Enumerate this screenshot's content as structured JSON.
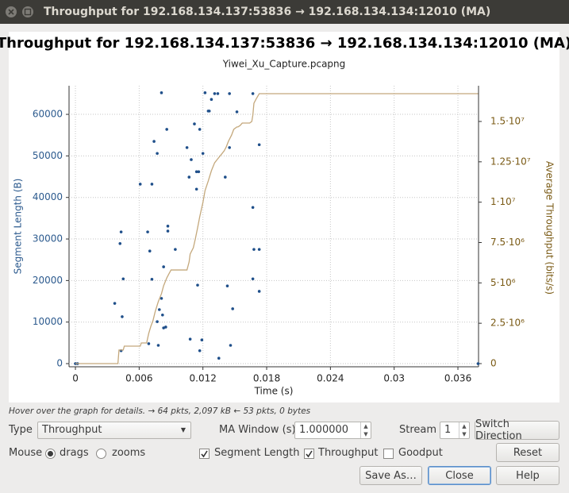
{
  "window_title": "Throughput for 192.168.134.137:53836 → 192.168.134.134:12010 (MA)",
  "chart_data": {
    "type": "scatter",
    "title": "Throughput for 192.168.134.137:53836 → 192.168.134.134:12010 (MA)",
    "subtitle": "Yiwei_Xu_Capture.pcapng",
    "x_label": "Time (s)",
    "y_label": "Segment Length (B)",
    "y2_label": "Average Throughput (bits/s)",
    "xlim": [
      -0.0006,
      0.03794
    ],
    "ylim": [
      -760,
      66890
    ],
    "y2lim": [
      -197000,
      17213000
    ],
    "xticks": [
      0,
      0.006,
      0.012,
      0.018,
      0.024,
      0.03,
      0.036
    ],
    "yticks": [
      0,
      10000,
      20000,
      30000,
      40000,
      50000,
      60000
    ],
    "y2ticks": [
      0,
      {
        "value": 2500000,
        "label": "2.5·10⁶"
      },
      {
        "value": 5000000,
        "label": "5·10⁶"
      },
      {
        "value": 7500000,
        "label": "7.5·10⁶"
      },
      {
        "value": 10000000,
        "label": "1·10⁷"
      },
      {
        "value": 12500000,
        "label": "1.25·10⁷"
      },
      {
        "value": 15000000,
        "label": "1.5·10⁷"
      }
    ],
    "grid": true,
    "series": [
      {
        "type": "scatter",
        "color": "#1f4f8a",
        "x": [
          0,
          0.0002,
          0.0037,
          0.0042,
          0.0043,
          0.0044,
          0.0045,
          0.0043,
          0.0061,
          0.0068,
          0.007,
          0.0069,
          0.0072,
          0.0072,
          0.0074,
          0.0077,
          0.0077,
          0.0078,
          0.0079,
          0.0081,
          0.0082,
          0.0083,
          0.0083,
          0.0085,
          0.0081,
          0.0086,
          0.0087,
          0.0087,
          0.0094,
          0.0105,
          0.0107,
          0.0109,
          0.0112,
          0.0114,
          0.0114,
          0.0116,
          0.0115,
          0.0117,
          0.0119,
          0.0108,
          0.0117,
          0.012,
          0.0122,
          0.0125,
          0.0126,
          0.0128,
          0.0131,
          0.0134,
          0.0135,
          0.0141,
          0.0143,
          0.0145,
          0.0145,
          0.0146,
          0.0148,
          0.0152,
          0.0167,
          0.0167,
          0.0168,
          0.0167,
          0.0173,
          0.0173,
          0.0173,
          0.0379
        ],
        "values": [
          0,
          0,
          14500,
          28900,
          31700,
          11300,
          20400,
          3100,
          43200,
          31700,
          27100,
          4800,
          43200,
          20300,
          53500,
          50600,
          10100,
          4400,
          13000,
          15700,
          11700,
          8600,
          23300,
          8800,
          65200,
          56400,
          33100,
          31900,
          27500,
          52000,
          44900,
          49100,
          57700,
          46200,
          42000,
          46200,
          18900,
          56400,
          5700,
          5900,
          3100,
          50600,
          65200,
          60800,
          60800,
          63600,
          65000,
          65000,
          1300,
          44900,
          18700,
          52000,
          65000,
          4400,
          13200,
          60600,
          65000,
          37600,
          27500,
          20400,
          27500,
          52700,
          17400,
          0
        ]
      },
      {
        "type": "line",
        "axis": "y2",
        "color": "#c4a87c",
        "x": [
          0,
          0.004,
          0.0041,
          0.0045,
          0.0046,
          0.0061,
          0.0062,
          0.0067,
          0.0069,
          0.0071,
          0.0073,
          0.0075,
          0.0078,
          0.0081,
          0.0083,
          0.0086,
          0.0088,
          0.009,
          0.0105,
          0.0107,
          0.0108,
          0.0111,
          0.0113,
          0.0115,
          0.0117,
          0.012,
          0.0122,
          0.0125,
          0.0128,
          0.0131,
          0.0134,
          0.0137,
          0.014,
          0.0142,
          0.0144,
          0.0147,
          0.0149,
          0.0152,
          0.0153,
          0.0155,
          0.0157,
          0.0164,
          0.0166,
          0.0167,
          0.0168,
          0.017,
          0.0173,
          0.0379
        ],
        "values": [
          0,
          0,
          840000,
          840000,
          1080000,
          1080000,
          1280000,
          1280000,
          1870000,
          2310000,
          2660000,
          3200000,
          3840000,
          4330000,
          4820000,
          5310000,
          5560000,
          5800000,
          5800000,
          6300000,
          6790000,
          7180000,
          7770000,
          8410000,
          9100000,
          9980000,
          10720000,
          11310000,
          11950000,
          12440000,
          12690000,
          12930000,
          13180000,
          13430000,
          13770000,
          14160000,
          14510000,
          14660000,
          14660000,
          14750000,
          14900000,
          14900000,
          15000000,
          15390000,
          16130000,
          16380000,
          16720000,
          16720000
        ]
      }
    ]
  },
  "status": "Hover over the graph for details. → 64 pkts, 2,097 kB ← 53 pkts, 0 bytes",
  "controls": {
    "type": {
      "label": "Type",
      "value": "Throughput"
    },
    "ma_window": {
      "label": "MA Window (s)",
      "value": "1.000000"
    },
    "stream": {
      "label": "Stream",
      "value": "1"
    },
    "switch_direction": "Switch Direction",
    "mouse": {
      "label": "Mouse",
      "options": [
        {
          "label": "drags",
          "checked": true
        },
        {
          "label": "zooms",
          "checked": false
        }
      ]
    },
    "segment_length": {
      "label": "Segment Length",
      "checked": true
    },
    "throughput": {
      "label": "Throughput",
      "checked": true
    },
    "goodput": {
      "label": "Goodput",
      "checked": false
    },
    "reset": "Reset",
    "save_as": "Save As…",
    "close": "Close",
    "help": "Help"
  }
}
